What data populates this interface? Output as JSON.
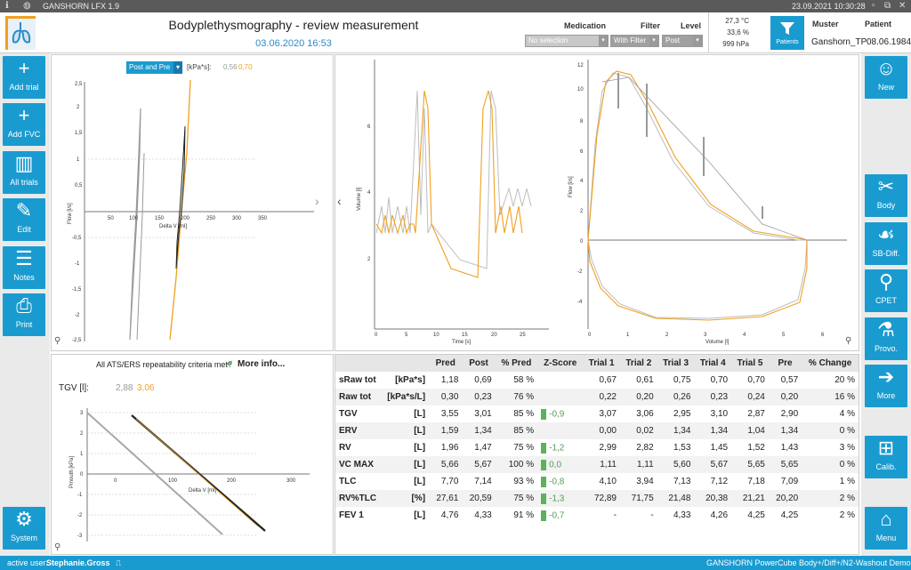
{
  "titlebar": {
    "app_name": "GANSHORN LFX 1.9",
    "datetime": "23.09.2021 10:30:28"
  },
  "header": {
    "title": "Bodyplethysmography - review measurement",
    "date": "03.06.2020 16:53",
    "medication_label": "Medication",
    "medication_value": "No selection",
    "filter_label": "Filter",
    "filter_value": "With Filter",
    "level_label": "Level",
    "level_value": "Post",
    "temp": "27,3 °C",
    "humidity": "33,6 %",
    "pressure": "999 hPa",
    "patients_label": "Patients",
    "muster_label": "Muster",
    "muster_value": "Ganshorn_TP",
    "patient_label": "Patient",
    "patient_value": "08.06.1984"
  },
  "left_sidebar": [
    "Add trial",
    "Add FVC",
    "All trials",
    "Edit",
    "Notes",
    "Print",
    "System"
  ],
  "right_sidebar": [
    "New",
    "Body",
    "SB-Diff.",
    "CPET",
    "Provo.",
    "More",
    "Calib.",
    "Menu"
  ],
  "resistance_chart": {
    "selector": "Post and Pre",
    "unit": "[kPa*s]:",
    "pre_value": "0,56",
    "post_value": "0,70",
    "xlabel": "Delta V [ml]",
    "ylabel": "Flow [l/s]",
    "xticks": [
      "50",
      "100",
      "150",
      "200",
      "250",
      "300",
      "350"
    ],
    "yticks": [
      "2,5",
      "2",
      "1,5",
      "1",
      "0,5",
      "-0,5",
      "-1",
      "-1,5",
      "-2",
      "-2,5"
    ]
  },
  "volume_chart": {
    "xlabel": "Time [s]",
    "ylabel": "Volume [l]",
    "xticks": [
      "0",
      "5",
      "10",
      "15",
      "20",
      "25"
    ],
    "yticks": [
      "2",
      "4",
      "6"
    ]
  },
  "flow_volume_chart": {
    "xlabel": "Volume [l]",
    "ylabel": "Flow [l/s]",
    "xticks": [
      "0",
      "1",
      "2",
      "3",
      "4",
      "5",
      "6"
    ],
    "yticks": [
      "12",
      "10",
      "8",
      "6",
      "4",
      "2",
      "0",
      "-2",
      "-4"
    ]
  },
  "tgv_chart": {
    "ats_text": "All ATS/ERS repeatability criteria met?",
    "more_info": "More info...",
    "tgv_label": "TGV [l]:",
    "pre_value": "2,88",
    "post_value": "3,06",
    "xlabel": "Delta V [ml]",
    "ylabel": "Pmouth [kPa]",
    "xticks": [
      "0",
      "100",
      "200",
      "300"
    ],
    "yticks": [
      "3",
      "2",
      "1",
      "0",
      "-1",
      "-2",
      "-3"
    ]
  },
  "results": {
    "headers": [
      "",
      "Pred",
      "Post",
      "% Pred",
      "Z-Score",
      "Trial 1",
      "Trial 2",
      "Trial 3",
      "Trial 4",
      "Trial 5",
      "Pre",
      "% Change"
    ],
    "rows": [
      {
        "name": "sRaw tot",
        "unit": "[kPa*s]",
        "pred": "1,18",
        "post": "0,69",
        "pct": "58 %",
        "z": "",
        "t1": "0,67",
        "t2": "0,61",
        "t3": "0,75",
        "t4": "0,70",
        "t5": "0,70",
        "pre": "0,57",
        "chg": "20 %"
      },
      {
        "name": "Raw tot",
        "unit": "[kPa*s/L]",
        "pred": "0,30",
        "post": "0,23",
        "pct": "76 %",
        "z": "",
        "t1": "0,22",
        "t2": "0,20",
        "t3": "0,26",
        "t4": "0,23",
        "t5": "0,24",
        "pre": "0,20",
        "chg": "16 %"
      },
      {
        "name": "TGV",
        "unit": "[L]",
        "pred": "3,55",
        "post": "3,01",
        "pct": "85 %",
        "z": "-0,9",
        "t1": "3,07",
        "t2": "3,06",
        "t3": "2,95",
        "t4": "3,10",
        "t5": "2,87",
        "pre": "2,90",
        "chg": "4 %"
      },
      {
        "name": "ERV",
        "unit": "[L]",
        "pred": "1,59",
        "post": "1,34",
        "pct": "85 %",
        "z": "",
        "t1": "0,00",
        "t2": "0,02",
        "t3": "1,34",
        "t4": "1,34",
        "t5": "1,04",
        "pre": "1,34",
        "chg": "0 %"
      },
      {
        "name": "RV",
        "unit": "[L]",
        "pred": "1,96",
        "post": "1,47",
        "pct": "75 %",
        "z": "-1,2",
        "t1": "2,99",
        "t2": "2,82",
        "t3": "1,53",
        "t4": "1,45",
        "t5": "1,52",
        "pre": "1,43",
        "chg": "3 %"
      },
      {
        "name": "VC MAX",
        "unit": "[L]",
        "pred": "5,66",
        "post": "5,67",
        "pct": "100 %",
        "z": "0,0",
        "t1": "1,11",
        "t2": "1,11",
        "t3": "5,60",
        "t4": "5,67",
        "t5": "5,65",
        "pre": "5,65",
        "chg": "0 %"
      },
      {
        "name": "TLC",
        "unit": "[L]",
        "pred": "7,70",
        "post": "7,14",
        "pct": "93 %",
        "z": "-0,8",
        "t1": "4,10",
        "t2": "3,94",
        "t3": "7,13",
        "t4": "7,12",
        "t5": "7,18",
        "pre": "7,09",
        "chg": "1 %"
      },
      {
        "name": "RV%TLC",
        "unit": "[%]",
        "pred": "27,61",
        "post": "20,59",
        "pct": "75 %",
        "z": "-1,3",
        "t1": "72,89",
        "t2": "71,75",
        "t3": "21,48",
        "t4": "20,38",
        "t5": "21,21",
        "pre": "20,20",
        "chg": "2 %"
      },
      {
        "name": "FEV 1",
        "unit": "[L]",
        "pred": "4,76",
        "post": "4,33",
        "pct": "91 %",
        "z": "-0,7",
        "t1": "-",
        "t2": "-",
        "t3": "4,33",
        "t4": "4,26",
        "t5": "4,25",
        "pre": "4,25",
        "chg": "2 %"
      }
    ]
  },
  "statusbar": {
    "user_label": "active user:",
    "user": "Stephanie.Gross",
    "device": "GANSHORN PowerCube Body+/Diff+/N2-Washout  Demo"
  },
  "colors": {
    "accent": "#1a9bd0",
    "post_series": "#f0a020",
    "pre_series": "#a0a0a0"
  }
}
